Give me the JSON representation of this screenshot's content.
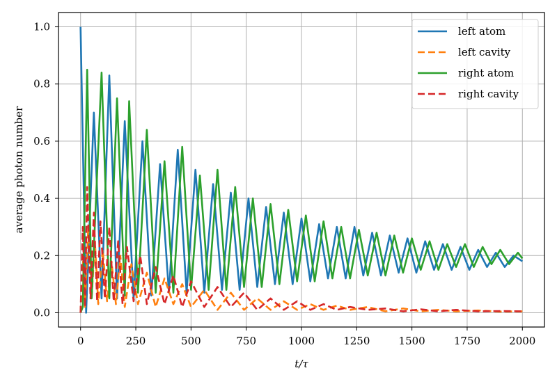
{
  "chart_data": {
    "type": "line",
    "xlabel": "t/τ",
    "ylabel": "average photon number",
    "xlim": [
      -100,
      2100
    ],
    "ylim": [
      -0.05,
      1.05
    ],
    "xticks": [
      0,
      250,
      500,
      750,
      1000,
      1250,
      1500,
      1750,
      2000
    ],
    "yticks": [
      0.0,
      0.2,
      0.4,
      0.6,
      0.8,
      1.0
    ],
    "xtick_labels": [
      "0",
      "250",
      "500",
      "750",
      "1000",
      "1250",
      "1500",
      "1750",
      "2000"
    ],
    "ytick_labels": [
      "0.0",
      "0.2",
      "0.4",
      "0.6",
      "0.8",
      "1.0"
    ],
    "grid": true,
    "legend_position": "top-right",
    "series": [
      {
        "name": "left atom",
        "style": "solid",
        "color": "#1f77b4",
        "x": [
          0,
          25,
          60,
          95,
          130,
          165,
          200,
          240,
          280,
          320,
          360,
          400,
          440,
          480,
          520,
          560,
          600,
          640,
          680,
          720,
          760,
          800,
          840,
          880,
          920,
          960,
          1000,
          1040,
          1080,
          1120,
          1160,
          1200,
          1240,
          1280,
          1320,
          1360,
          1400,
          1440,
          1480,
          1520,
          1560,
          1600,
          1640,
          1680,
          1720,
          1760,
          1800,
          1840,
          1880,
          1920,
          1960,
          2000
        ],
        "y": [
          1.0,
          0.0,
          0.7,
          0.05,
          0.83,
          0.05,
          0.67,
          0.05,
          0.6,
          0.06,
          0.52,
          0.07,
          0.57,
          0.07,
          0.5,
          0.07,
          0.45,
          0.08,
          0.42,
          0.08,
          0.4,
          0.09,
          0.37,
          0.1,
          0.35,
          0.1,
          0.33,
          0.11,
          0.31,
          0.12,
          0.3,
          0.12,
          0.3,
          0.13,
          0.28,
          0.13,
          0.27,
          0.14,
          0.26,
          0.14,
          0.25,
          0.15,
          0.24,
          0.15,
          0.23,
          0.15,
          0.22,
          0.16,
          0.21,
          0.16,
          0.2,
          0.18
        ]
      },
      {
        "name": "left cavity",
        "style": "dashed",
        "color": "#ff7f0e",
        "x": [
          0,
          10,
          20,
          35,
          50,
          65,
          80,
          100,
          120,
          140,
          160,
          180,
          200,
          230,
          260,
          300,
          340,
          380,
          420,
          460,
          500,
          560,
          620,
          680,
          740,
          800,
          860,
          920,
          980,
          1040,
          1100,
          1160,
          1220,
          1300,
          1380,
          1460,
          1540,
          1620,
          1700,
          1800,
          1900,
          2000
        ],
        "y": [
          0.0,
          0.2,
          0.02,
          0.3,
          0.05,
          0.25,
          0.03,
          0.22,
          0.04,
          0.18,
          0.03,
          0.2,
          0.02,
          0.17,
          0.03,
          0.14,
          0.02,
          0.12,
          0.03,
          0.1,
          0.02,
          0.08,
          0.01,
          0.07,
          0.01,
          0.05,
          0.01,
          0.04,
          0.01,
          0.03,
          0.01,
          0.025,
          0.01,
          0.02,
          0.005,
          0.015,
          0.005,
          0.01,
          0.005,
          0.008,
          0.004,
          0.005
        ]
      },
      {
        "name": "right atom",
        "style": "solid",
        "color": "#2ca02c",
        "x": [
          0,
          10,
          30,
          50,
          95,
          130,
          165,
          200,
          220,
          260,
          300,
          340,
          380,
          420,
          460,
          500,
          540,
          580,
          620,
          660,
          700,
          740,
          780,
          820,
          860,
          900,
          940,
          980,
          1020,
          1060,
          1100,
          1140,
          1180,
          1220,
          1260,
          1300,
          1340,
          1380,
          1420,
          1460,
          1500,
          1540,
          1580,
          1620,
          1660,
          1700,
          1740,
          1780,
          1820,
          1860,
          1900,
          1940,
          1980,
          2000
        ],
        "y": [
          0.0,
          0.02,
          0.85,
          0.05,
          0.84,
          0.05,
          0.75,
          0.06,
          0.74,
          0.07,
          0.64,
          0.07,
          0.53,
          0.07,
          0.58,
          0.08,
          0.48,
          0.08,
          0.5,
          0.08,
          0.44,
          0.09,
          0.4,
          0.09,
          0.38,
          0.1,
          0.36,
          0.11,
          0.34,
          0.11,
          0.32,
          0.12,
          0.3,
          0.12,
          0.29,
          0.13,
          0.28,
          0.13,
          0.27,
          0.14,
          0.26,
          0.15,
          0.25,
          0.15,
          0.24,
          0.16,
          0.24,
          0.16,
          0.23,
          0.17,
          0.22,
          0.17,
          0.21,
          0.19
        ]
      },
      {
        "name": "right cavity",
        "style": "dashed",
        "color": "#d62728",
        "x": [
          0,
          10,
          20,
          30,
          45,
          60,
          75,
          90,
          110,
          130,
          150,
          170,
          190,
          210,
          240,
          270,
          300,
          340,
          380,
          420,
          460,
          500,
          560,
          620,
          680,
          740,
          800,
          860,
          920,
          980,
          1040,
          1100,
          1160,
          1220,
          1300,
          1380,
          1460,
          1540,
          1620,
          1700,
          1800,
          1900,
          2000
        ],
        "y": [
          0.0,
          0.3,
          0.02,
          0.44,
          0.05,
          0.35,
          0.04,
          0.32,
          0.05,
          0.3,
          0.04,
          0.25,
          0.03,
          0.23,
          0.04,
          0.2,
          0.03,
          0.16,
          0.03,
          0.13,
          0.02,
          0.11,
          0.02,
          0.09,
          0.02,
          0.07,
          0.01,
          0.05,
          0.01,
          0.04,
          0.01,
          0.03,
          0.01,
          0.02,
          0.01,
          0.015,
          0.005,
          0.012,
          0.005,
          0.01,
          0.005,
          0.006,
          0.005
        ]
      }
    ]
  }
}
